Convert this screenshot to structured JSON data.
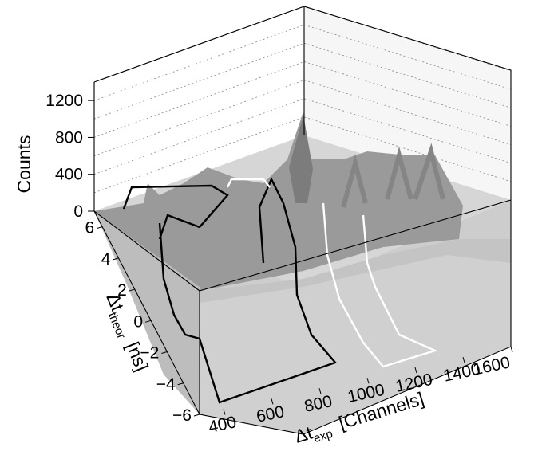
{
  "chart_data": {
    "type": "surface",
    "zlabel": "Counts",
    "ylabel": {
      "delta": "Δt",
      "sub": "theor",
      "unit": "[ns]"
    },
    "xlabel": {
      "delta": "Δt",
      "sub": "exp",
      "unit": "[Channels]"
    },
    "zlim": [
      0,
      1400
    ],
    "ylim": [
      -6,
      7
    ],
    "xlim": [
      300,
      1600
    ],
    "z_ticks": [
      "0",
      "400",
      "800",
      "1200"
    ],
    "y_ticks": [
      "−6",
      "−4",
      "−2",
      "0",
      "2",
      "4",
      "6"
    ],
    "x_ticks": [
      "400",
      "600",
      "800",
      "1000",
      "1200",
      "1400",
      "1600"
    ],
    "grid": true,
    "surface_fill": "#b0b0b0",
    "regions": [
      {
        "color": "#000000"
      },
      {
        "color": "#000000"
      },
      {
        "color": "#ffffff"
      },
      {
        "color": "#ffffff"
      }
    ]
  }
}
